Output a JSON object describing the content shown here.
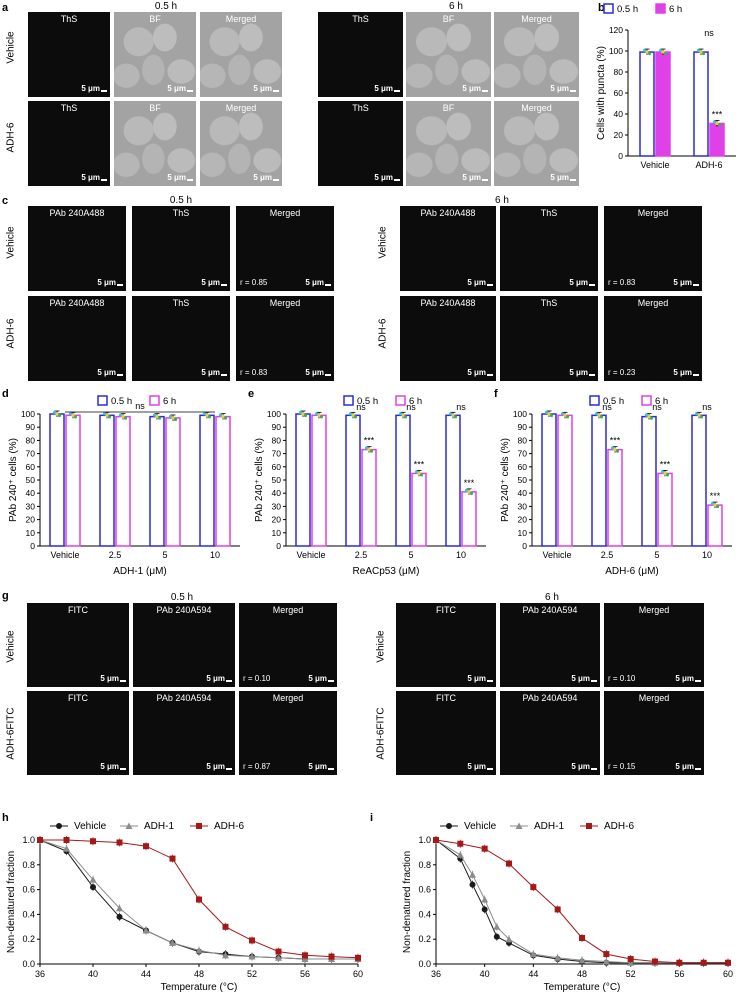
{
  "panel_letters": {
    "a": "a",
    "b": "b",
    "c": "c",
    "d": "d",
    "e": "e",
    "f": "f",
    "g": "g",
    "h": "h",
    "i": "i"
  },
  "time_labels": {
    "t1": "0.5 h",
    "t2": "6 h"
  },
  "row_labels": {
    "vehicle": "Vehicle",
    "adh6": "ADH-6",
    "adh6_fitc": "ADH-6FITC"
  },
  "channel_labels": {
    "ths": "ThS",
    "bf": "BF",
    "merged": "Merged",
    "pab488": "PAb 240A488",
    "pab594": "PAb 240A594",
    "fitc": "FITC"
  },
  "scale_text": "5 μm",
  "panel_c_r": {
    "veh_05": "r = 0.85",
    "adh_05": "r = 0.83",
    "veh_6": "r = 0.83",
    "adh_6": "r = 0.23"
  },
  "panel_g_r": {
    "veh_05": "r = 0.10",
    "adh_05": "r = 0.87",
    "veh_6": "r = 0.10",
    "adh_6": "r = 0.15"
  },
  "colors": {
    "blue": "#2b2bd6",
    "magenta": "#e040e8",
    "black": "#1a1a1a",
    "gray": "#8c8c8c",
    "darkred": "#a41818"
  },
  "chart_data": [
    {
      "id": "b",
      "type": "bar",
      "categories": [
        "Vehicle",
        "ADH-6"
      ],
      "series": [
        {
          "name": "0.5 h",
          "values": [
            99,
            99
          ]
        },
        {
          "name": "6 h",
          "values": [
            99,
            31
          ]
        }
      ],
      "ylabel": "Cells with puncta (%)",
      "ylim": [
        0,
        120
      ],
      "yticks": [
        0,
        20,
        40,
        60,
        80,
        100,
        120
      ],
      "annotations": [
        "",
        "***"
      ],
      "ns_text": "ns",
      "legend": "top",
      "second_series_filled": true
    },
    {
      "id": "d",
      "type": "bar",
      "categories": [
        "Vehicle",
        "2.5",
        "5",
        "10"
      ],
      "series": [
        {
          "name": "0.5 h",
          "values": [
            100,
            99,
            98,
            99
          ]
        },
        {
          "name": "6 h",
          "values": [
            99,
            98,
            97,
            98
          ]
        }
      ],
      "xlabel": "ADH-1 (μM)",
      "ylabel": "PAb 240⁺ cells (%)",
      "ylim": [
        0,
        100
      ],
      "yticks": [
        0,
        10,
        20,
        30,
        40,
        50,
        60,
        70,
        80,
        90,
        100
      ],
      "annotations": [
        "",
        "",
        "",
        ""
      ],
      "ns_top": "ns",
      "ns_each": [],
      "legend": "top",
      "second_series_filled": false
    },
    {
      "id": "e",
      "type": "bar",
      "categories": [
        "Vehicle",
        "2.5",
        "5",
        "10"
      ],
      "series": [
        {
          "name": "0.5 h",
          "values": [
            100,
            99,
            99,
            99
          ]
        },
        {
          "name": "6 h",
          "values": [
            99,
            73,
            55,
            41
          ]
        }
      ],
      "xlabel": "ReACp53 (μM)",
      "ylabel": "PAb 240⁺ cells (%)",
      "ylim": [
        0,
        100
      ],
      "yticks": [
        0,
        10,
        20,
        30,
        40,
        50,
        60,
        70,
        80,
        90,
        100
      ],
      "annotations": [
        "",
        "***",
        "***",
        "***"
      ],
      "ns_each": [
        "",
        "ns",
        "ns",
        "ns"
      ],
      "legend": "top",
      "second_series_filled": false
    },
    {
      "id": "f",
      "type": "bar",
      "categories": [
        "Vehicle",
        "2.5",
        "5",
        "10"
      ],
      "series": [
        {
          "name": "0.5 h",
          "values": [
            100,
            99,
            98,
            99
          ]
        },
        {
          "name": "6 h",
          "values": [
            99,
            73,
            55,
            31
          ]
        }
      ],
      "xlabel": "ADH-6 (μM)",
      "ylabel": "PAb 240⁺ cells (%)",
      "ylim": [
        0,
        100
      ],
      "yticks": [
        0,
        10,
        20,
        30,
        40,
        50,
        60,
        70,
        80,
        90,
        100
      ],
      "annotations": [
        "",
        "***",
        "***",
        "***"
      ],
      "ns_each": [
        "",
        "ns",
        "ns",
        "ns"
      ],
      "legend": "top",
      "second_series_filled": false
    },
    {
      "id": "h",
      "type": "line",
      "xlabel": "Temperature (°C)",
      "ylabel": "Non-denatured fraction",
      "xlim": [
        36,
        60
      ],
      "ylim": [
        0,
        1.0
      ],
      "xticks": [
        36,
        40,
        44,
        48,
        52,
        56,
        60
      ],
      "yticks": [
        0.0,
        0.2,
        0.4,
        0.6,
        0.8,
        1.0
      ],
      "series": [
        {
          "name": "Vehicle",
          "x": [
            36,
            38,
            40,
            42,
            44,
            46,
            48,
            50,
            52,
            54,
            56,
            58,
            60
          ],
          "y": [
            1.0,
            0.91,
            0.62,
            0.38,
            0.27,
            0.17,
            0.1,
            0.08,
            0.06,
            0.05,
            0.04,
            0.04,
            0.04
          ]
        },
        {
          "name": "ADH-1",
          "x": [
            36,
            38,
            40,
            42,
            44,
            46,
            48,
            50,
            52,
            54,
            56,
            58,
            60
          ],
          "y": [
            1.0,
            0.93,
            0.68,
            0.45,
            0.27,
            0.17,
            0.11,
            0.07,
            0.06,
            0.05,
            0.04,
            0.04,
            0.04
          ]
        },
        {
          "name": "ADH-6",
          "x": [
            36,
            38,
            40,
            42,
            44,
            46,
            48,
            50,
            52,
            54,
            56,
            58,
            60
          ],
          "y": [
            1.0,
            1.0,
            0.99,
            0.98,
            0.95,
            0.85,
            0.52,
            0.3,
            0.19,
            0.1,
            0.07,
            0.06,
            0.05
          ]
        }
      ]
    },
    {
      "id": "i",
      "type": "line",
      "xlabel": "Temperature (°C)",
      "ylabel": "Non-denatured fraction",
      "xlim": [
        36,
        60
      ],
      "ylim": [
        0,
        1.0
      ],
      "xticks": [
        36,
        40,
        44,
        48,
        52,
        56,
        60
      ],
      "yticks": [
        0.0,
        0.2,
        0.4,
        0.6,
        0.8,
        1.0
      ],
      "series": [
        {
          "name": "Vehicle",
          "x": [
            36,
            38,
            39,
            40,
            41,
            42,
            44,
            46,
            48,
            50,
            52,
            54,
            56,
            58,
            60
          ],
          "y": [
            1.0,
            0.85,
            0.64,
            0.44,
            0.22,
            0.17,
            0.07,
            0.04,
            0.02,
            0.01,
            0.01,
            0.01,
            0.01,
            0.01,
            0.01
          ]
        },
        {
          "name": "ADH-1",
          "x": [
            36,
            38,
            39,
            40,
            41,
            42,
            44,
            46,
            48,
            50,
            52,
            54,
            56,
            58,
            60
          ],
          "y": [
            1.0,
            0.88,
            0.72,
            0.52,
            0.3,
            0.2,
            0.08,
            0.05,
            0.03,
            0.02,
            0.01,
            0.01,
            0.01,
            0.01,
            0.01
          ]
        },
        {
          "name": "ADH-6",
          "x": [
            36,
            38,
            40,
            42,
            44,
            46,
            48,
            50,
            52,
            54,
            56,
            58,
            60
          ],
          "y": [
            1.0,
            0.97,
            0.93,
            0.81,
            0.62,
            0.44,
            0.21,
            0.08,
            0.04,
            0.02,
            0.01,
            0.01,
            0.01
          ]
        }
      ]
    }
  ]
}
